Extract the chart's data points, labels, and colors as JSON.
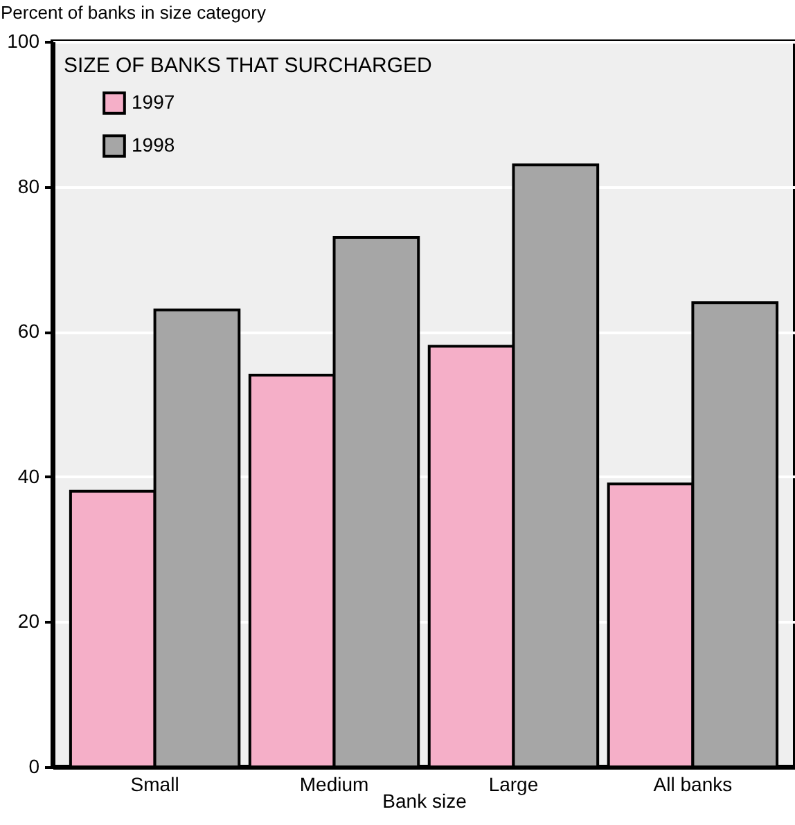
{
  "chart_data": {
    "type": "bar",
    "title": "SIZE OF BANKS THAT SURCHARGED",
    "ylabel": "Percent of banks in size category",
    "xlabel": "Bank size",
    "categories": [
      "Small",
      "Medium",
      "Large",
      "All banks"
    ],
    "series": [
      {
        "name": "1997",
        "color": "#f5afc8",
        "values": [
          38,
          54,
          58,
          39
        ]
      },
      {
        "name": "1998",
        "color": "#a6a6a6",
        "values": [
          63,
          73,
          83,
          64
        ]
      }
    ],
    "ylim": [
      0,
      100
    ],
    "yticks": [
      0,
      20,
      40,
      60,
      80,
      100
    ],
    "grid": "y",
    "legend": "top left"
  }
}
